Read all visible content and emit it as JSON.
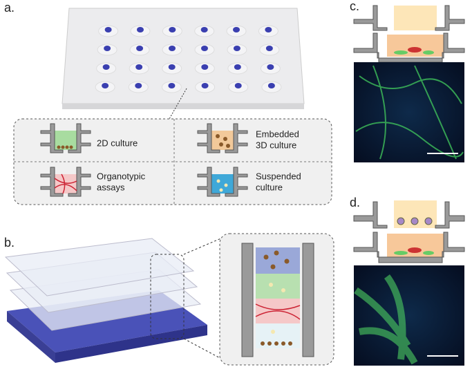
{
  "panels": {
    "a": {
      "label": "a."
    },
    "b": {
      "label": "b."
    },
    "c": {
      "label": "c."
    },
    "d": {
      "label": "d."
    }
  },
  "cultures": [
    {
      "lines": [
        "2D culture"
      ]
    },
    {
      "lines": [
        "Embedded",
        "3D culture"
      ]
    },
    {
      "lines": [
        "Organotypic",
        "assays"
      ]
    },
    {
      "lines": [
        "Suspended",
        "culture"
      ]
    }
  ]
}
